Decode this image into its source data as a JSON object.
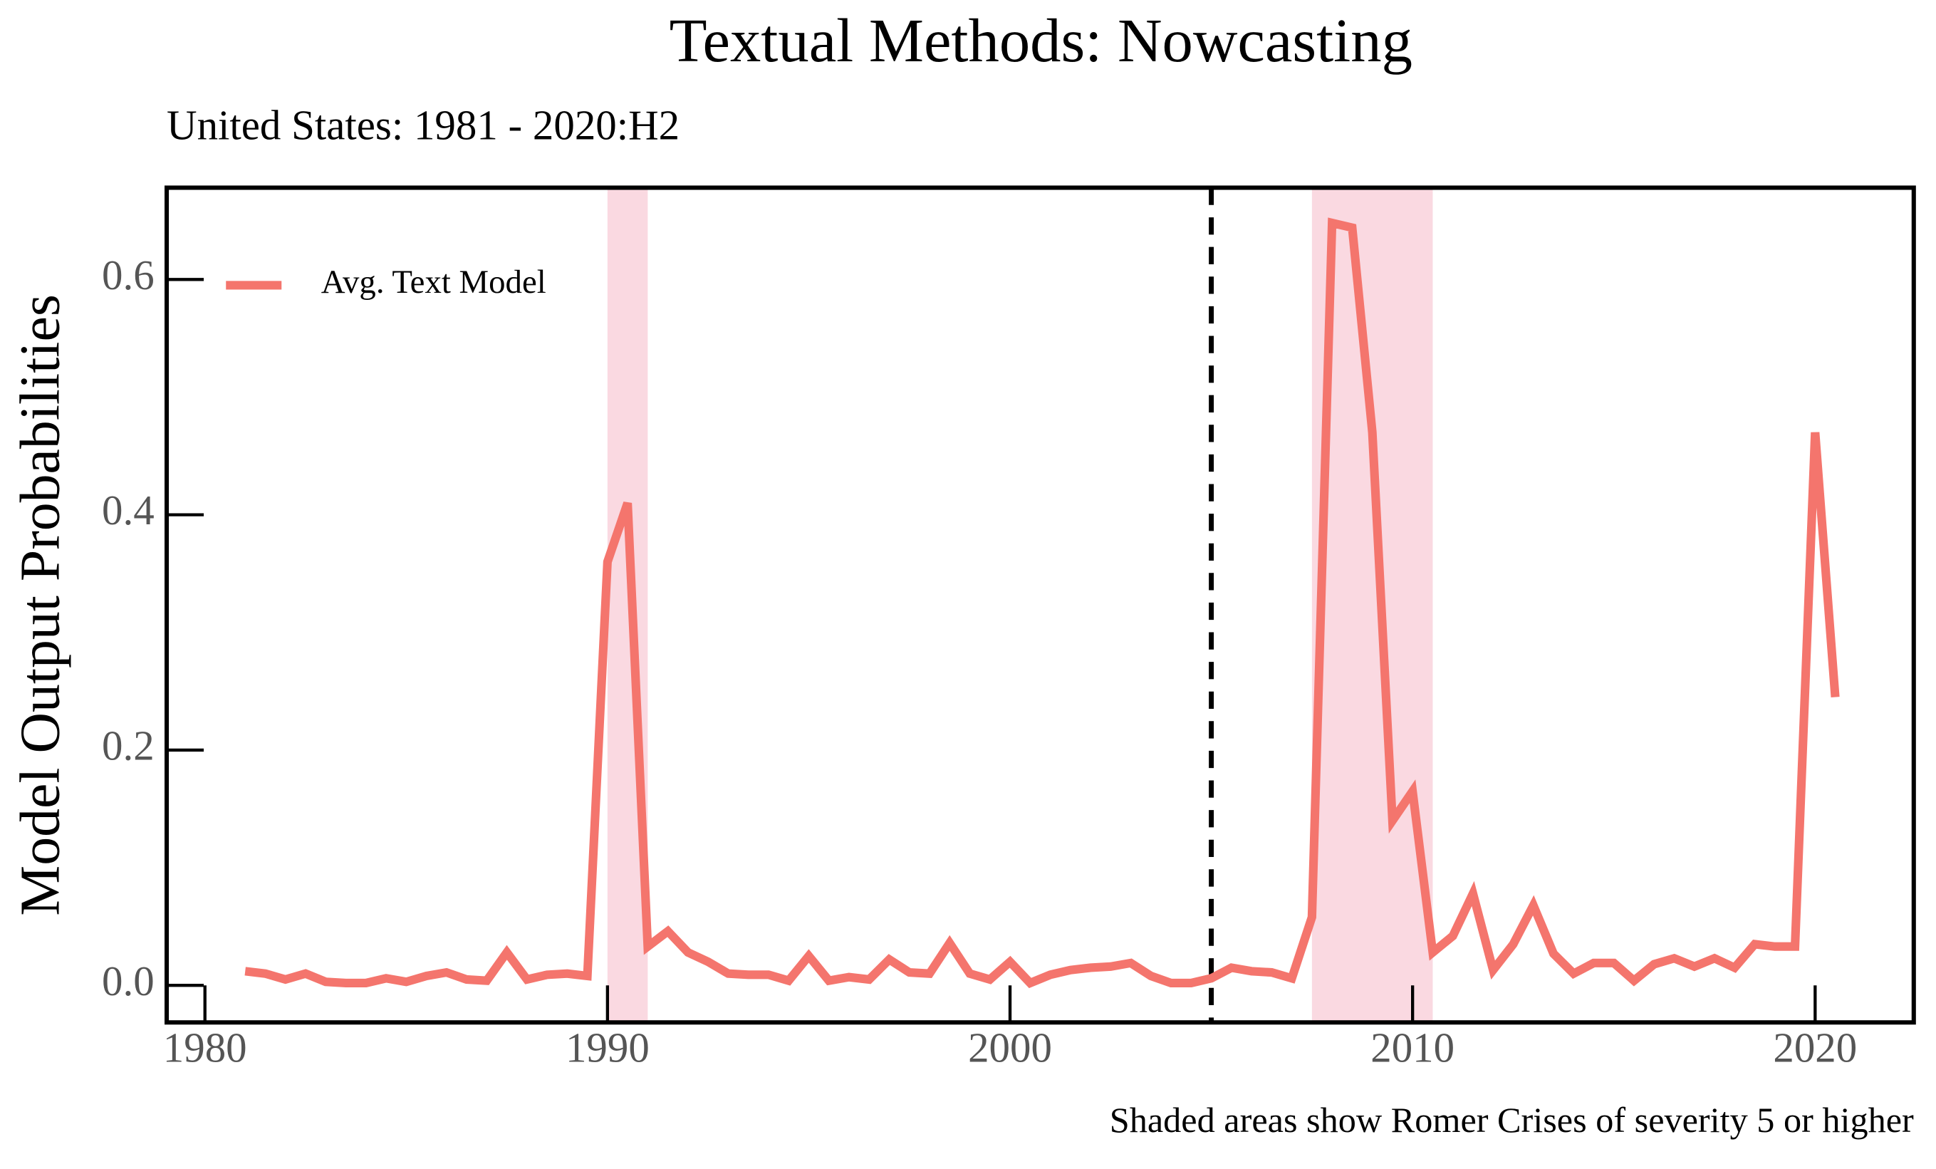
{
  "chart_data": {
    "type": "line",
    "title": "Textual Methods: Nowcasting",
    "subtitle": "United States: 1981 - 2020:H2",
    "y_label": "Model Output Probabilities",
    "note": "Shaded areas show Romer Crises of severity 5 or higher",
    "x": [
      1981,
      1981.5,
      1982,
      1982.5,
      1983,
      1983.5,
      1984,
      1984.5,
      1985,
      1985.5,
      1986,
      1986.5,
      1987,
      1987.5,
      1988,
      1988.5,
      1989,
      1989.5,
      1990,
      1990.5,
      1991,
      1991.5,
      1992,
      1992.5,
      1993,
      1993.5,
      1994,
      1994.5,
      1995,
      1995.5,
      1996,
      1996.5,
      1997,
      1997.5,
      1998,
      1998.5,
      1999,
      1999.5,
      2000,
      2000.5,
      2001,
      2001.5,
      2002,
      2002.5,
      2003,
      2003.5,
      2004,
      2004.5,
      2005,
      2005.5,
      2006,
      2006.5,
      2007,
      2007.5,
      2008,
      2008.5,
      2009,
      2009.5,
      2010,
      2010.5,
      2011,
      2011.5,
      2012,
      2012.5,
      2013,
      2013.5,
      2014,
      2014.5,
      2015,
      2015.5,
      2016,
      2016.5,
      2017,
      2017.5,
      2018,
      2018.5,
      2019,
      2019.5,
      2020,
      2020.5
    ],
    "series": [
      {
        "name": "Avg. Text Model",
        "color": "#f4756d",
        "values": [
          0.012,
          0.01,
          0.005,
          0.01,
          0.003,
          0.002,
          0.002,
          0.006,
          0.003,
          0.008,
          0.011,
          0.005,
          0.004,
          0.028,
          0.005,
          0.009,
          0.01,
          0.008,
          0.36,
          0.41,
          0.033,
          0.046,
          0.028,
          0.02,
          0.01,
          0.009,
          0.009,
          0.004,
          0.025,
          0.004,
          0.007,
          0.005,
          0.022,
          0.011,
          0.01,
          0.036,
          0.01,
          0.005,
          0.02,
          0.002,
          0.009,
          0.013,
          0.015,
          0.016,
          0.019,
          0.008,
          0.002,
          0.002,
          0.006,
          0.015,
          0.012,
          0.011,
          0.006,
          0.058,
          0.648,
          0.644,
          0.47,
          0.14,
          0.165,
          0.028,
          0.042,
          0.078,
          0.013,
          0.035,
          0.068,
          0.027,
          0.01,
          0.019,
          0.019,
          0.004,
          0.018,
          0.023,
          0.016,
          0.023,
          0.015,
          0.035,
          0.033,
          0.033,
          0.47,
          0.245
        ]
      }
    ],
    "shaded_regions": [
      [
        1990,
        1991
      ],
      [
        2007.5,
        2010.5
      ]
    ],
    "shade_color": "#fad9e1",
    "vline": 2005,
    "xlim": [
      1979.05,
      2022.45
    ],
    "ylim": [
      -0.0315,
      0.678
    ],
    "xticks": [
      1980,
      1990,
      2000,
      2010,
      2020
    ],
    "yticks": [
      {
        "value": 0,
        "label": "0.0"
      },
      {
        "value": 0.2,
        "label": "0.2"
      },
      {
        "value": 0.4,
        "label": "0.4"
      },
      {
        "value": 0.6,
        "label": "0.6"
      }
    ],
    "legend_position": "upper left"
  }
}
